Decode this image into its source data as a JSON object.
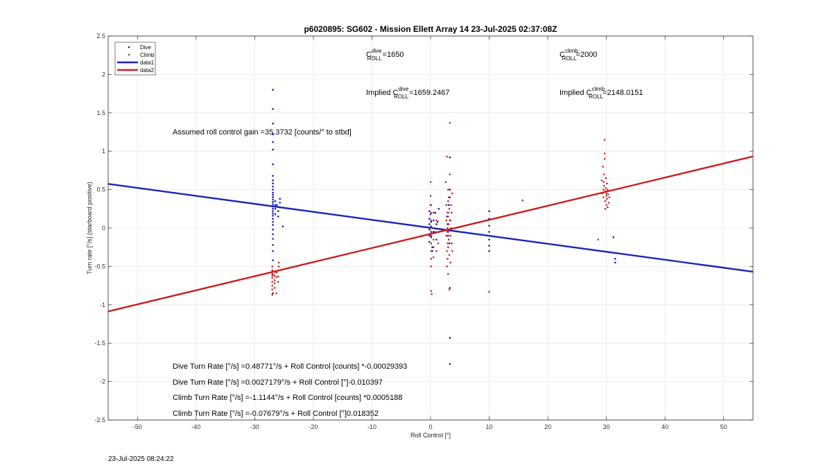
{
  "chart_data": {
    "type": "scatter",
    "title": "p6020895: SG602 - Mission Ellett Array 14 23-Jul-2025 02:37:08Z",
    "xlabel": "Roll Control [°]",
    "ylabel": "Turn rate [°/s] (starboard positive)",
    "xlim": [
      -55,
      55
    ],
    "ylim": [
      -2.5,
      2.5
    ],
    "xticks": [
      -50,
      -40,
      -30,
      -20,
      -10,
      0,
      10,
      20,
      30,
      40,
      50
    ],
    "yticks": [
      -2.5,
      -2,
      -1.5,
      -1,
      -0.5,
      0,
      0.5,
      1,
      1.5,
      2,
      2.5
    ],
    "xtick_labels": [
      "-50",
      "-40",
      "-30",
      "-20",
      "-10",
      "0",
      "10",
      "20",
      "30",
      "40",
      "50"
    ],
    "ytick_labels": [
      "-2.5",
      "-2",
      "-1.5",
      "-1",
      "-0.5",
      "0",
      "0.5",
      "1",
      "1.5",
      "2",
      "2.5"
    ],
    "grid": true,
    "legend_position": "top-left",
    "legend": [
      "Dive",
      "Climb",
      "data1",
      "data2"
    ],
    "colors": {
      "dive": "#1515c8",
      "climb": "#d42020",
      "data1": "#1a24b8",
      "data2": "#cc1c1c",
      "grid": "#e6e6e6",
      "axes": "#262626"
    },
    "series": [
      {
        "name": "Dive",
        "marker": "dot",
        "points": [
          [
            -26.9,
            1.8
          ],
          [
            -26.9,
            1.55
          ],
          [
            -26.9,
            1.36
          ],
          [
            -26.9,
            1.22
          ],
          [
            -26.9,
            1.12
          ],
          [
            -26.9,
            1.02
          ],
          [
            -26.9,
            0.83
          ],
          [
            -26.9,
            0.68
          ],
          [
            -26.9,
            0.62
          ],
          [
            -26.9,
            0.58
          ],
          [
            -26.9,
            0.54
          ],
          [
            -26.9,
            0.5
          ],
          [
            -26.9,
            0.46
          ],
          [
            -26.9,
            0.43
          ],
          [
            -26.9,
            0.4
          ],
          [
            -26.9,
            0.37
          ],
          [
            -26.9,
            0.34
          ],
          [
            -26.9,
            0.31
          ],
          [
            -26.9,
            0.28
          ],
          [
            -26.9,
            0.25
          ],
          [
            -26.9,
            0.22
          ],
          [
            -26.9,
            0.19
          ],
          [
            -26.9,
            0.16
          ],
          [
            -26.9,
            0.12
          ],
          [
            -26.9,
            0.08
          ],
          [
            -26.9,
            0.04
          ],
          [
            -26.9,
            -0.02
          ],
          [
            -26.9,
            -0.08
          ],
          [
            -26.9,
            -0.14
          ],
          [
            -26.9,
            -0.22
          ],
          [
            -26.9,
            -0.3
          ],
          [
            -26.9,
            -0.42
          ],
          [
            -26.9,
            -0.6
          ],
          [
            -26.9,
            -0.85
          ],
          [
            -26.5,
            0.35
          ],
          [
            -26.5,
            0.3
          ],
          [
            -26.5,
            0.25
          ],
          [
            -26.5,
            0.18
          ],
          [
            -26.2,
            0.3
          ],
          [
            -26.0,
            0.22
          ],
          [
            -26.0,
            0.15
          ],
          [
            -25.7,
            0.38
          ],
          [
            -25.7,
            0.33
          ],
          [
            -25.7,
            0.27
          ],
          [
            -25.2,
            0.02
          ],
          [
            -0.2,
            0.22
          ],
          [
            -0.2,
            0.12
          ],
          [
            -0.2,
            0.05
          ],
          [
            -0.2,
            -0.02
          ],
          [
            -0.2,
            -0.1
          ],
          [
            -0.2,
            -0.18
          ],
          [
            0.0,
            0.3
          ],
          [
            0.0,
            0.18
          ],
          [
            0.1,
            0.08
          ],
          [
            0.1,
            0.02
          ],
          [
            0.1,
            -0.05
          ],
          [
            0.1,
            -0.12
          ],
          [
            0.3,
            -0.25
          ],
          [
            0.3,
            -0.3
          ],
          [
            0.5,
            0.1
          ],
          [
            0.5,
            -0.05
          ],
          [
            0.8,
            0.2
          ],
          [
            1.0,
            0.05
          ],
          [
            1.0,
            -0.15
          ],
          [
            1.2,
            0.08
          ],
          [
            1.4,
            0.25
          ],
          [
            2.8,
            0.15
          ],
          [
            2.9,
            0.05
          ],
          [
            2.9,
            -0.05
          ],
          [
            3.0,
            0.2
          ],
          [
            3.0,
            -0.1
          ],
          [
            3.1,
            0.3
          ],
          [
            3.2,
            -0.2
          ],
          [
            3.3,
            0.92
          ],
          [
            3.3,
            0.5
          ],
          [
            3.3,
            0.4
          ],
          [
            3.3,
            0.1
          ],
          [
            3.3,
            -0.78
          ],
          [
            3.3,
            -1.43
          ],
          [
            3.3,
            -1.77
          ],
          [
            10.0,
            0.22
          ],
          [
            10.0,
            0.12
          ],
          [
            10.0,
            0.03
          ],
          [
            10.0,
            -0.05
          ],
          [
            10.0,
            -0.15
          ],
          [
            10.0,
            -0.23
          ],
          [
            10.0,
            -0.3
          ],
          [
            31.2,
            -0.12
          ],
          [
            31.5,
            -0.4
          ],
          [
            31.5,
            -0.45
          ]
        ]
      },
      {
        "name": "Climb",
        "marker": "dot",
        "points": [
          [
            -27.0,
            -0.5
          ],
          [
            -27.0,
            -0.55
          ],
          [
            -27.0,
            -0.6
          ],
          [
            -27.0,
            -0.62
          ],
          [
            -27.0,
            -0.65
          ],
          [
            -27.0,
            -0.7
          ],
          [
            -27.0,
            -0.75
          ],
          [
            -27.0,
            -0.8
          ],
          [
            -27.0,
            -0.87
          ],
          [
            -26.6,
            -0.57
          ],
          [
            -26.6,
            -0.62
          ],
          [
            -26.6,
            -0.68
          ],
          [
            -26.6,
            -0.72
          ],
          [
            -26.6,
            -0.78
          ],
          [
            -26.3,
            -0.58
          ],
          [
            -26.3,
            -0.64
          ],
          [
            -26.0,
            -0.63
          ],
          [
            -26.0,
            -0.7
          ],
          [
            -25.9,
            -0.45
          ],
          [
            -25.9,
            -0.5
          ],
          [
            -26.3,
            -0.85
          ],
          [
            0.0,
            0.6
          ],
          [
            0.0,
            0.42
          ],
          [
            0.1,
            0.3
          ],
          [
            0.1,
            0.2
          ],
          [
            0.1,
            0.1
          ],
          [
            0.1,
            0.0
          ],
          [
            0.1,
            -0.1
          ],
          [
            0.1,
            -0.2
          ],
          [
            0.1,
            -0.3
          ],
          [
            0.1,
            -0.4
          ],
          [
            0.1,
            -0.5
          ],
          [
            0.1,
            -0.82
          ],
          [
            0.2,
            -0.86
          ],
          [
            0.5,
            -0.15
          ],
          [
            0.5,
            -0.25
          ],
          [
            0.5,
            -0.38
          ],
          [
            0.5,
            0.2
          ],
          [
            0.8,
            -0.05
          ],
          [
            1.0,
            0.1
          ],
          [
            1.0,
            -0.3
          ],
          [
            1.3,
            -0.2
          ],
          [
            2.6,
            0.6
          ],
          [
            2.7,
            0.3
          ],
          [
            2.7,
            0.1
          ],
          [
            2.7,
            -0.1
          ],
          [
            2.8,
            -0.3
          ],
          [
            2.8,
            -0.5
          ],
          [
            2.8,
            0.93
          ],
          [
            2.9,
            0.2
          ],
          [
            2.9,
            0.0
          ],
          [
            2.9,
            -0.2
          ],
          [
            2.9,
            -0.4
          ],
          [
            3.0,
            0.5
          ],
          [
            3.0,
            0.35
          ],
          [
            3.0,
            0.15
          ],
          [
            3.0,
            -0.05
          ],
          [
            3.0,
            -0.25
          ],
          [
            3.0,
            -0.6
          ],
          [
            3.1,
            0.4
          ],
          [
            3.1,
            0.05
          ],
          [
            3.1,
            -0.15
          ],
          [
            3.2,
            0.25
          ],
          [
            3.2,
            -0.35
          ],
          [
            3.2,
            -0.8
          ],
          [
            3.3,
            1.37
          ],
          [
            3.3,
            0.7
          ],
          [
            3.4,
            0.1
          ],
          [
            3.4,
            -0.1
          ],
          [
            3.4,
            -0.45
          ],
          [
            3.5,
            0.3
          ],
          [
            3.5,
            0.0
          ],
          [
            3.6,
            0.2
          ],
          [
            3.6,
            -0.2
          ],
          [
            3.7,
            0.45
          ],
          [
            3.7,
            -0.3
          ],
          [
            10.0,
            -0.83
          ],
          [
            15.7,
            0.36
          ],
          [
            28.6,
            -0.15
          ],
          [
            29.4,
            0.8
          ],
          [
            29.5,
            0.6
          ],
          [
            29.5,
            0.5
          ],
          [
            29.5,
            0.4
          ],
          [
            29.6,
            0.7
          ],
          [
            29.6,
            0.55
          ],
          [
            29.7,
            1.15
          ],
          [
            29.7,
            0.97
          ],
          [
            29.7,
            0.9
          ],
          [
            29.8,
            0.48
          ],
          [
            29.8,
            0.35
          ],
          [
            29.8,
            0.25
          ],
          [
            29.9,
            0.65
          ],
          [
            29.9,
            0.52
          ],
          [
            30.0,
            0.45
          ],
          [
            30.0,
            0.3
          ],
          [
            30.0,
            0.42
          ],
          [
            30.1,
            0.58
          ],
          [
            30.1,
            0.38
          ],
          [
            30.2,
            0.5
          ],
          [
            30.2,
            0.27
          ],
          [
            30.3,
            0.44
          ],
          [
            30.4,
            0.33
          ],
          [
            30.5,
            0.4
          ],
          [
            29.3,
            0.45
          ],
          [
            29.2,
            0.62
          ]
        ]
      },
      {
        "name": "data1",
        "line": {
          "slope": -0.010397,
          "intercept": 0.0027179
        }
      },
      {
        "name": "data2",
        "line": {
          "slope": 0.018352,
          "intercept": -0.07679
        }
      }
    ],
    "annotations": {
      "c_dive": {
        "main": "C",
        "sup": "dive",
        "sub": "ROLL",
        "value": "=1650"
      },
      "c_climb": {
        "main": "C",
        "sup": "climb",
        "sub": "ROLL",
        "value": "=2000"
      },
      "implied_dive": {
        "prefix": "Implied C",
        "sup": "dive",
        "sub": "ROLL",
        "value": "=1659.2467"
      },
      "implied_climb": {
        "prefix": "Implied C",
        "sup": "climb",
        "sub": "ROLL",
        "value": "=2148.0151"
      },
      "gain": "Assumed roll control gain =35.3732 [counts/° to stbd]",
      "equations": [
        "Dive Turn Rate [°/s] =0.48771°/s + Roll Control [counts] *-0.00029393",
        "Dive Turn Rate [°/s] =0.0027179°/s + Roll Control [°]-0.010397",
        "Climb Turn Rate [°/s] =-1.1144°/s + Roll Control [counts] *0.0005188",
        "Climb Turn Rate [°/s] =-0.07679°/s + Roll Control [°]0.018352"
      ]
    }
  },
  "footer": {
    "timestamp": "23-Jul-2025 08:24:22"
  }
}
